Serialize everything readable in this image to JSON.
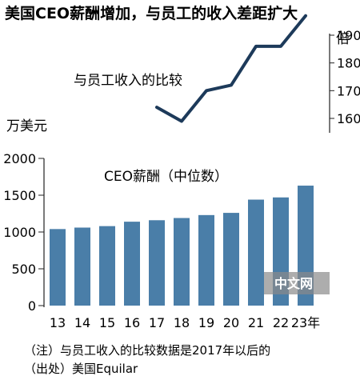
{
  "title": "美国CEO薪酬增加，与员工的收入差距扩大",
  "notes": [
    "（注）与员工收入的比较数据是2017年以后的",
    "（出处）美国Equilar"
  ],
  "watermark": {
    "text": "中文网"
  },
  "chart_data": [
    {
      "type": "bar",
      "label": "CEO薪酬（中位数）",
      "unit": "万美元",
      "categories": [
        "13",
        "14",
        "15",
        "16",
        "17",
        "18",
        "19",
        "20",
        "21",
        "22",
        "23年"
      ],
      "values": [
        1040,
        1060,
        1080,
        1140,
        1160,
        1190,
        1230,
        1260,
        1440,
        1470,
        1630
      ],
      "ylim": [
        0,
        2000
      ],
      "yticks": [
        0,
        500,
        1000,
        1500,
        2000
      ],
      "color": "#4a7ea8"
    },
    {
      "type": "line",
      "label": "与员工收入的比较",
      "unit": "倍",
      "x": [
        "17",
        "18",
        "19",
        "20",
        "21",
        "22",
        "23年"
      ],
      "values": [
        164,
        159,
        170,
        172,
        186,
        186,
        197
      ],
      "yticks": [
        160,
        170,
        180,
        190
      ],
      "color": "#1d3a5a"
    }
  ]
}
